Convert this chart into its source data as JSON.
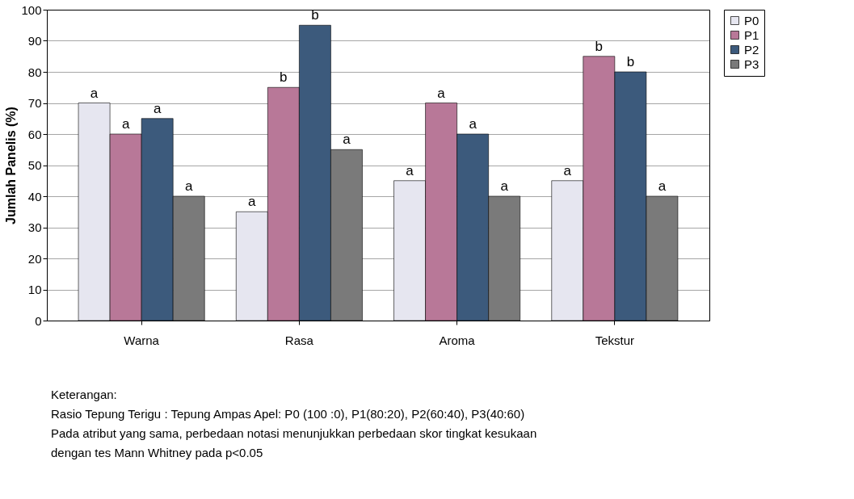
{
  "chart_data": {
    "type": "bar",
    "ylabel": "Jumlah Panelis (%)",
    "categories": [
      "Warna",
      "Rasa",
      "Aroma",
      "Tekstur"
    ],
    "series": [
      {
        "name": "P0",
        "color": "#e6e6f0",
        "values": [
          70,
          35,
          45,
          45
        ],
        "value_labels": [
          "a",
          "a",
          "a",
          "a"
        ]
      },
      {
        "name": "P1",
        "color": "#b87898",
        "values": [
          60,
          75,
          70,
          85
        ],
        "value_labels": [
          "a",
          "b",
          "a",
          "b"
        ]
      },
      {
        "name": "P2",
        "color": "#3c5a7c",
        "values": [
          65,
          95,
          60,
          80
        ],
        "value_labels": [
          "a",
          "b",
          "a",
          "b"
        ]
      },
      {
        "name": "P3",
        "color": "#7a7a7a",
        "values": [
          40,
          55,
          40,
          40
        ],
        "value_labels": [
          "a",
          "a",
          "a",
          "a"
        ]
      }
    ],
    "ylim": [
      0,
      100
    ],
    "yticks": [
      0,
      10,
      20,
      30,
      40,
      50,
      60,
      70,
      80,
      90,
      100
    ],
    "grid": "y",
    "legend": "right",
    "annotations": [
      "Keterangan:",
      "Rasio Tepung Terigu : Tepung Ampas Apel: P0 (100 :0), P1(80:20), P2(60:40), P3(40:60)",
      "Pada atribut yang sama, perbedaan notasi menunjukkan perbedaan skor tingkat kesukaan",
      "dengan tes Mann Whitney pada p<0.05"
    ]
  }
}
